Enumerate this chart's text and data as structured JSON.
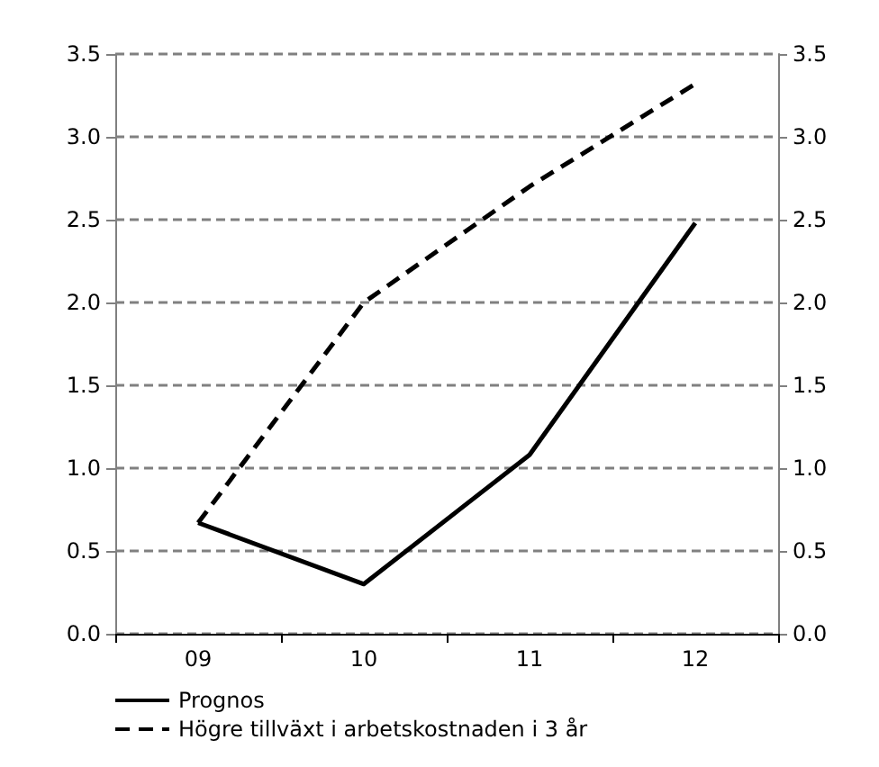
{
  "chart_data": {
    "type": "line",
    "categories": [
      "09",
      "10",
      "11",
      "12"
    ],
    "series": [
      {
        "name": "Prognos",
        "color": "#000000",
        "line_style": "solid",
        "values": [
          0.67,
          0.3,
          1.08,
          2.48
        ]
      },
      {
        "name": "Högre tillväxt i arbetskostnaden i 3 år",
        "color": "#000000",
        "line_style": "dashed",
        "values": [
          0.67,
          2.0,
          2.7,
          3.32
        ]
      }
    ],
    "ylim": [
      0,
      3.5
    ],
    "yticks": [
      {
        "value": 0,
        "label": "0.0"
      },
      0.5,
      {
        "value": 1,
        "label": "1.0"
      },
      1.5,
      {
        "value": 2,
        "label": "2.0"
      },
      2.5,
      {
        "value": 3,
        "label": "3.0"
      },
      3.5
    ],
    "y2lim": [
      0,
      3.5
    ],
    "y2ticks": [
      {
        "value": 0,
        "label": "0.0"
      },
      0.5,
      {
        "value": 1,
        "label": "1.0"
      },
      1.5,
      {
        "value": 2,
        "label": "2.0"
      },
      2.5,
      {
        "value": 3,
        "label": "3.0"
      },
      3.5
    ],
    "grid": "y",
    "legend": "bottom left",
    "marker": "none"
  }
}
